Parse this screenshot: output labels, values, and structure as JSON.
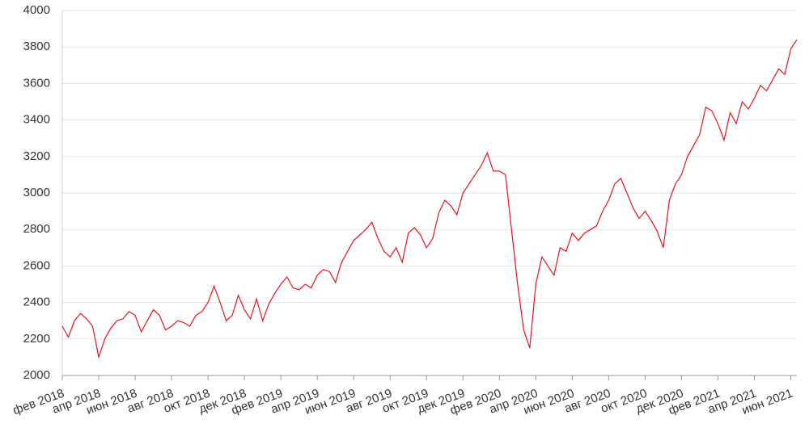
{
  "chart_data": {
    "type": "line",
    "categories": [
      "фев 2018",
      null,
      null,
      null,
      null,
      null,
      "апр 2018",
      null,
      null,
      null,
      null,
      null,
      "июн 2018",
      null,
      null,
      null,
      null,
      null,
      "авг 2018",
      null,
      null,
      null,
      null,
      null,
      "окт 2018",
      null,
      null,
      null,
      null,
      null,
      "дек 2018",
      null,
      null,
      null,
      null,
      null,
      "фев 2019",
      null,
      null,
      null,
      null,
      null,
      "апр 2019",
      null,
      null,
      null,
      null,
      null,
      "июн 2019",
      null,
      null,
      null,
      null,
      null,
      "авг 2019",
      null,
      null,
      null,
      null,
      null,
      "окт 2019",
      null,
      null,
      null,
      null,
      null,
      "дек 2019",
      null,
      null,
      null,
      null,
      null,
      "фев 2020",
      null,
      null,
      null,
      null,
      null,
      "апр 2020",
      null,
      null,
      null,
      null,
      null,
      "июн 2020",
      null,
      null,
      null,
      null,
      null,
      "авг 2020",
      null,
      null,
      null,
      null,
      null,
      "окт 2020",
      null,
      null,
      null,
      null,
      null,
      "дек 2020",
      null,
      null,
      null,
      null,
      null,
      "фев 2021",
      null,
      null,
      null,
      null,
      null,
      "апр 2021",
      null,
      null,
      null,
      null,
      null,
      "июн 2021",
      null
    ],
    "series": [
      {
        "color": "#e8141c",
        "values": [
          2270,
          2210,
          2300,
          2340,
          2310,
          2270,
          2100,
          2200,
          2260,
          2300,
          2310,
          2350,
          2330,
          2240,
          2300,
          2360,
          2330,
          2250,
          2270,
          2300,
          2290,
          2270,
          2330,
          2350,
          2400,
          2490,
          2400,
          2300,
          2330,
          2440,
          2360,
          2310,
          2420,
          2300,
          2390,
          2450,
          2500,
          2540,
          2480,
          2470,
          2500,
          2480,
          2550,
          2580,
          2570,
          2510,
          2620,
          2680,
          2740,
          2770,
          2800,
          2840,
          2750,
          2680,
          2650,
          2700,
          2620,
          2780,
          2810,
          2770,
          2700,
          2750,
          2890,
          2960,
          2930,
          2880,
          3000,
          3050,
          3100,
          3150,
          3220,
          3120,
          3120,
          3100,
          2800,
          2500,
          2250,
          2150,
          2500,
          2650,
          2600,
          2550,
          2700,
          2680,
          2780,
          2740,
          2780,
          2800,
          2820,
          2900,
          2960,
          3050,
          3080,
          3000,
          2920,
          2860,
          2900,
          2850,
          2790,
          2700,
          2960,
          3050,
          3100,
          3200,
          3260,
          3320,
          3470,
          3450,
          3380,
          3290,
          3440,
          3380,
          3500,
          3460,
          3520,
          3590,
          3560,
          3620,
          3680,
          3650,
          3790,
          3840
        ]
      }
    ],
    "ylim": [
      2000,
      4000
    ],
    "yticks": [
      2000,
      2200,
      2400,
      2600,
      2800,
      3000,
      3200,
      3400,
      3600,
      3800,
      4000
    ],
    "grid": true
  }
}
